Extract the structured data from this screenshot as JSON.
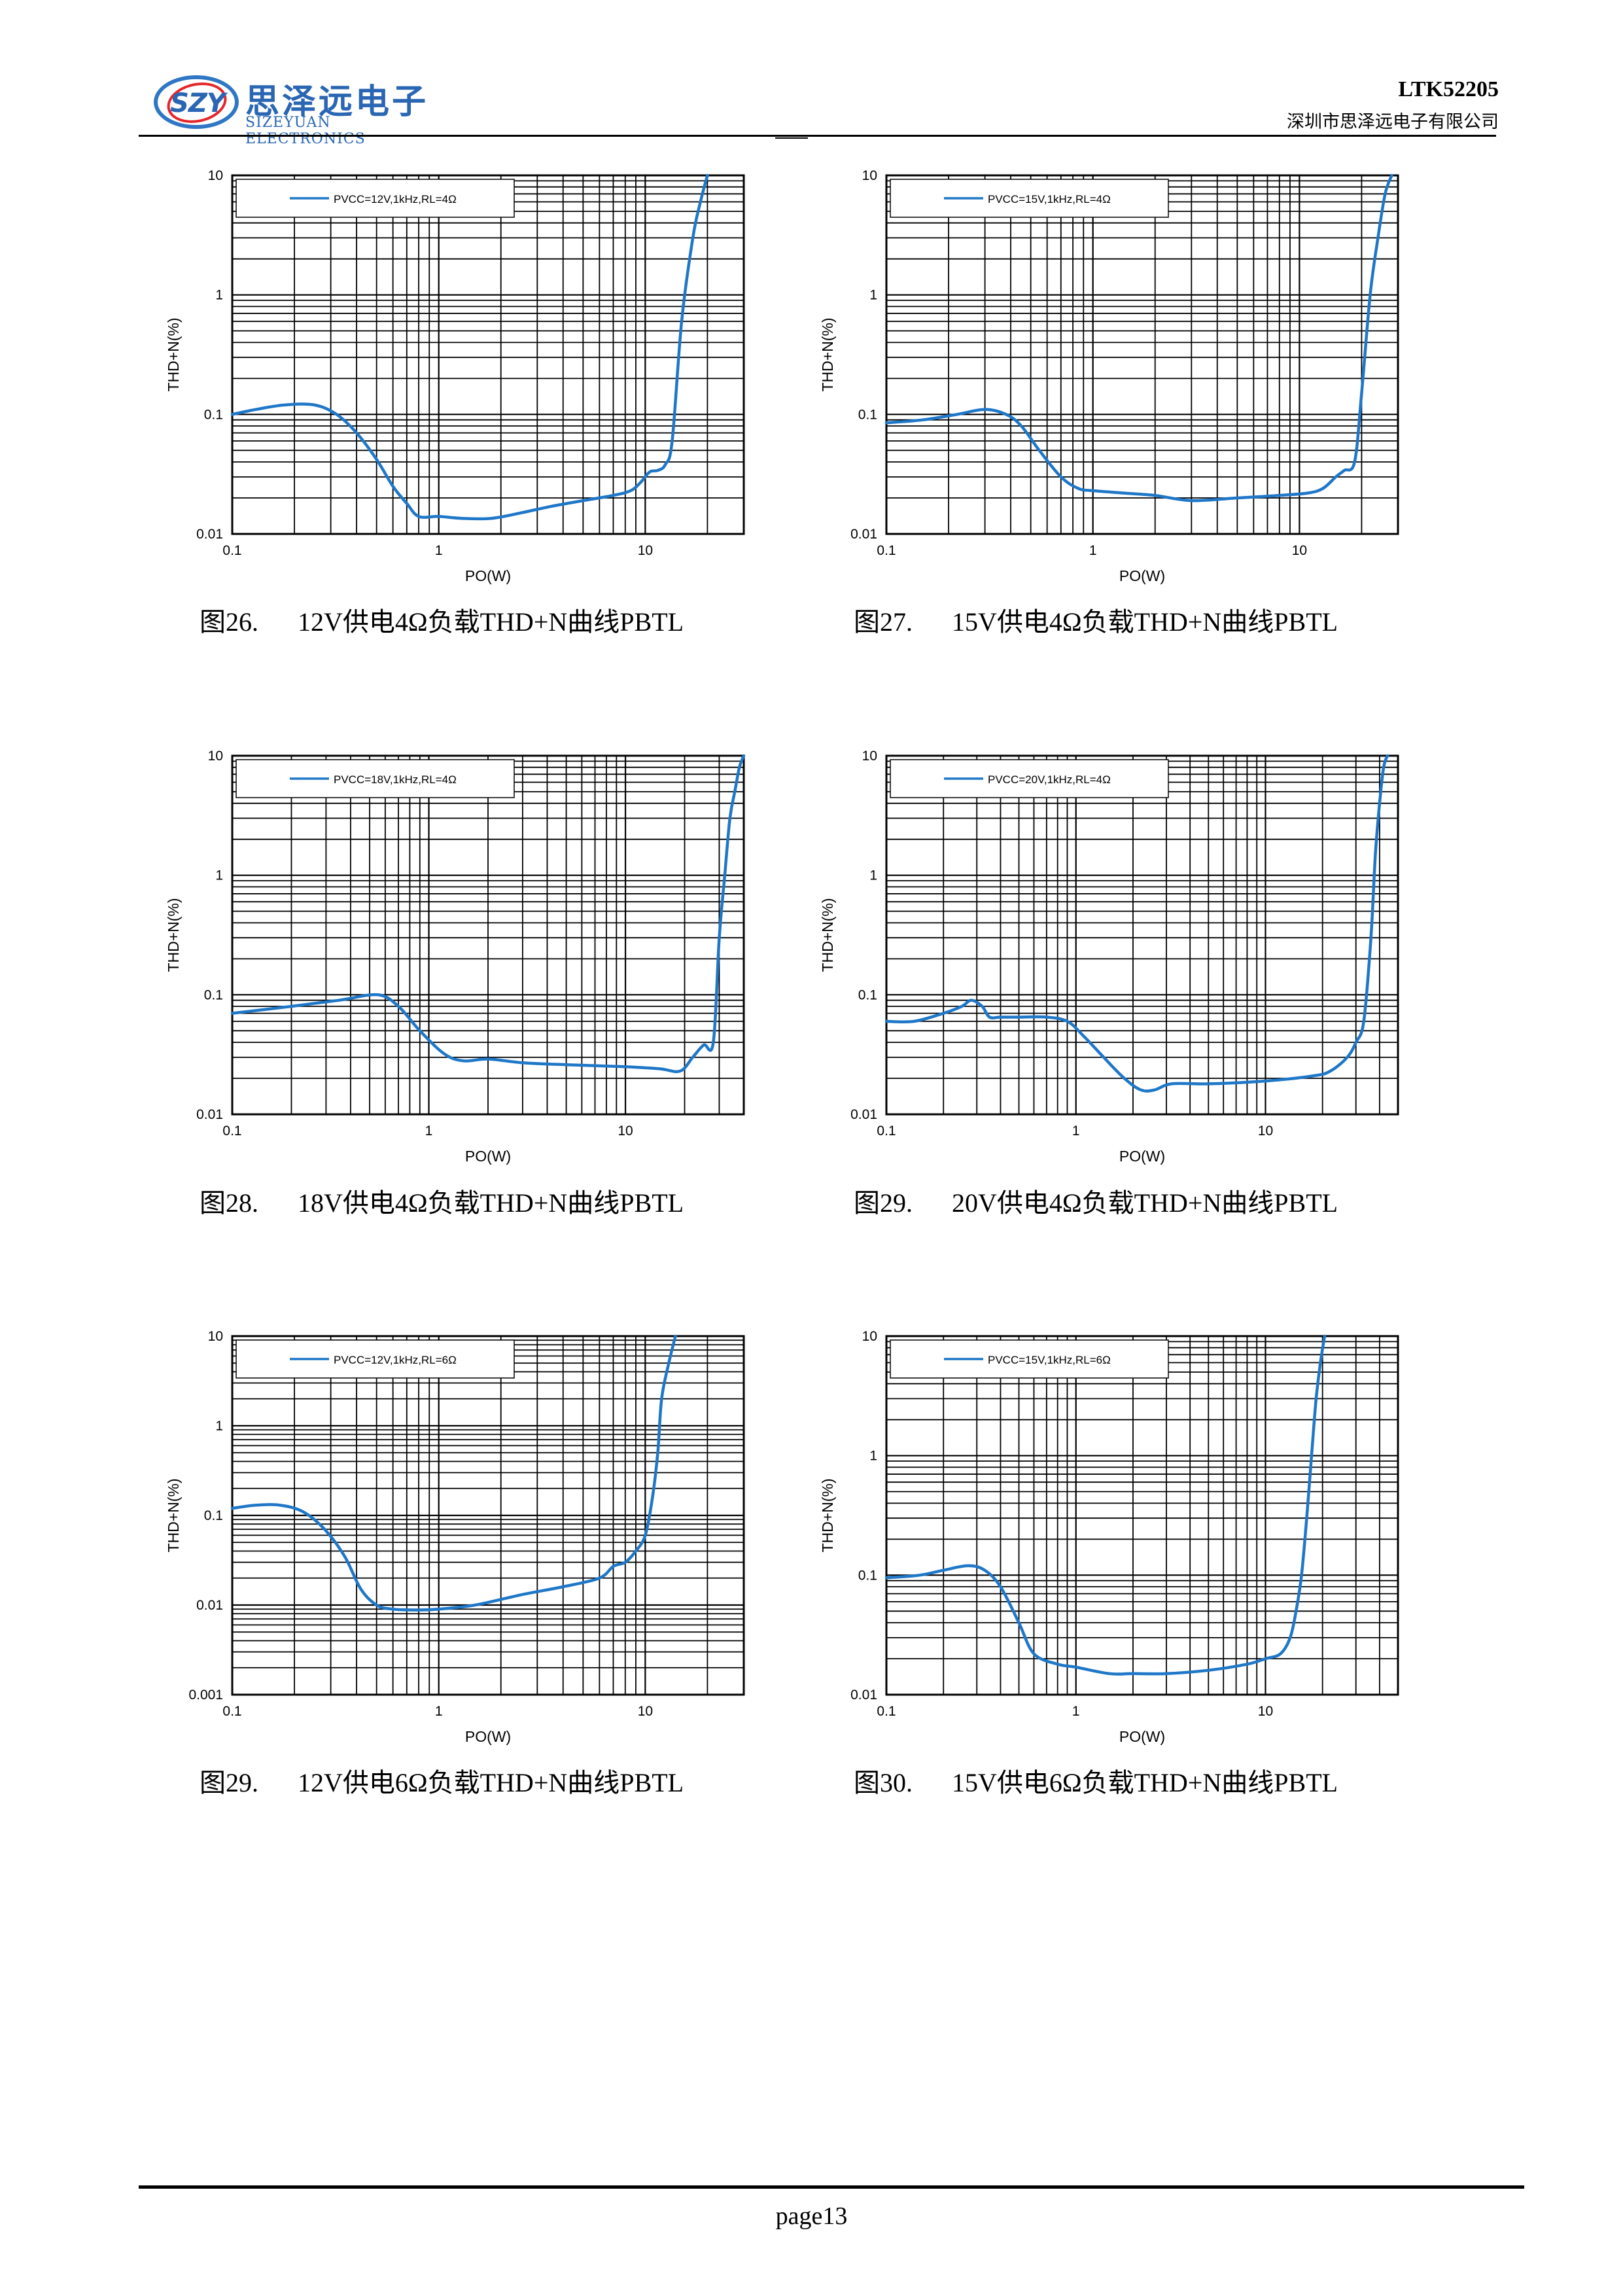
{
  "header": {
    "logo_mark": "SZY",
    "logo_cn": "思泽远电子",
    "logo_en": "SIZEYUAN ELECTRONICS",
    "doc_code": "LTK52205",
    "company": "深圳市思泽远电子有限公司"
  },
  "footer": {
    "page": "page13"
  },
  "charts": [
    {
      "caption_num": "图26.",
      "caption_text": "12V供电4Ω负载THD+N曲线PBTL"
    },
    {
      "caption_num": "图27.",
      "caption_text": "15V供电4Ω负载THD+N曲线PBTL"
    },
    {
      "caption_num": "图28.",
      "caption_text": "18V供电4Ω负载THD+N曲线PBTL"
    },
    {
      "caption_num": "图29.",
      "caption_text": "20V供电4Ω负载THD+N曲线PBTL"
    },
    {
      "caption_num": "图29.",
      "caption_text": "12V供电6Ω负载THD+N曲线PBTL"
    },
    {
      "caption_num": "图30.",
      "caption_text": "15V供电6Ω负载THD+N曲线PBTL"
    }
  ],
  "chart_data": [
    {
      "type": "line",
      "xscale": "log",
      "yscale": "log",
      "xlabel": "PO(W)",
      "ylabel": "THD+N(%)",
      "xlim": [
        0.1,
        30
      ],
      "ylim": [
        0.01,
        10
      ],
      "xticks": [
        "0.1",
        "1",
        "10"
      ],
      "yticks": [
        "0.01",
        "0.1",
        "1",
        "10"
      ],
      "grid": true,
      "legend": "top-left",
      "color": "#1f77c8",
      "series": [
        {
          "name": "PVCC=12V,1kHz,RL=4Ω",
          "x": [
            0.1,
            0.13,
            0.18,
            0.25,
            0.32,
            0.4,
            0.5,
            0.6,
            0.7,
            0.8,
            1.0,
            1.3,
            1.8,
            2.5,
            3.5,
            5,
            7,
            8.5,
            9.5,
            10.5,
            11.5,
            12.5,
            13.5,
            15,
            17,
            18.5,
            20
          ],
          "y": [
            0.1,
            0.11,
            0.12,
            0.12,
            0.1,
            0.07,
            0.042,
            0.025,
            0.018,
            0.014,
            0.014,
            0.0135,
            0.0135,
            0.015,
            0.017,
            0.019,
            0.021,
            0.023,
            0.027,
            0.033,
            0.034,
            0.038,
            0.06,
            0.6,
            3.0,
            6.0,
            10
          ]
        }
      ]
    },
    {
      "type": "line",
      "xscale": "log",
      "yscale": "log",
      "xlabel": "PO(W)",
      "ylabel": "THD+N(%)",
      "xlim": [
        0.1,
        30
      ],
      "ylim": [
        0.01,
        10
      ],
      "xticks": [
        "0.1",
        "1",
        "10"
      ],
      "yticks": [
        "0.01",
        "0.1",
        "1",
        "10"
      ],
      "grid": true,
      "legend": "top-left",
      "color": "#1f77c8",
      "series": [
        {
          "name": "PVCC=15V,1kHz,RL=4Ω",
          "x": [
            0.1,
            0.15,
            0.22,
            0.3,
            0.38,
            0.45,
            0.55,
            0.7,
            0.85,
            1.0,
            1.4,
            2.0,
            3.0,
            5,
            8,
            11,
            13,
            15,
            16.5,
            18.5,
            20,
            22,
            24,
            26,
            28
          ],
          "y": [
            0.085,
            0.09,
            0.1,
            0.11,
            0.1,
            0.08,
            0.05,
            0.03,
            0.024,
            0.023,
            0.022,
            0.021,
            0.019,
            0.02,
            0.021,
            0.022,
            0.024,
            0.03,
            0.034,
            0.04,
            0.15,
            1.0,
            3.0,
            7.0,
            10
          ]
        }
      ]
    },
    {
      "type": "line",
      "xscale": "log",
      "yscale": "log",
      "xlabel": "PO(W)",
      "ylabel": "THD+N(%)",
      "xlim": [
        0.1,
        40
      ],
      "ylim": [
        0.01,
        10
      ],
      "xticks": [
        "0.1",
        "1",
        "10"
      ],
      "yticks": [
        "0.01",
        "0.1",
        "1",
        "10"
      ],
      "grid": true,
      "legend": "top-left",
      "color": "#1f77c8",
      "series": [
        {
          "name": "PVCC=18V,1kHz,RL=4Ω",
          "x": [
            0.1,
            0.2,
            0.35,
            0.55,
            0.7,
            0.9,
            1.2,
            1.5,
            2.0,
            3.0,
            5,
            10,
            15,
            19,
            22,
            25,
            28,
            30,
            32,
            34,
            36,
            38,
            40
          ],
          "y": [
            0.07,
            0.08,
            0.09,
            0.1,
            0.08,
            0.05,
            0.032,
            0.028,
            0.029,
            0.027,
            0.026,
            0.025,
            0.024,
            0.023,
            0.03,
            0.038,
            0.04,
            0.3,
            1.0,
            3.0,
            5.0,
            8.0,
            10
          ]
        }
      ]
    },
    {
      "type": "line",
      "xscale": "log",
      "yscale": "log",
      "xlabel": "PO(W)",
      "ylabel": "THD+N(%)",
      "xlim": [
        0.1,
        50
      ],
      "ylim": [
        0.01,
        10
      ],
      "xticks": [
        "0.1",
        "1",
        "10"
      ],
      "yticks": [
        "0.01",
        "0.1",
        "1",
        "10"
      ],
      "grid": true,
      "legend": "top-left",
      "color": "#1f77c8",
      "series": [
        {
          "name": "PVCC=20V,1kHz,RL=4Ω",
          "x": [
            0.1,
            0.14,
            0.2,
            0.25,
            0.28,
            0.32,
            0.35,
            0.4,
            0.5,
            0.7,
            0.9,
            1.1,
            1.4,
            1.8,
            2.2,
            2.6,
            3.2,
            5,
            10,
            18,
            22,
            27,
            30,
            33,
            36,
            38,
            40,
            42,
            44
          ],
          "y": [
            0.06,
            0.06,
            0.07,
            0.08,
            0.09,
            0.08,
            0.065,
            0.065,
            0.065,
            0.065,
            0.06,
            0.045,
            0.03,
            0.02,
            0.016,
            0.016,
            0.018,
            0.018,
            0.019,
            0.021,
            0.023,
            0.03,
            0.04,
            0.06,
            0.3,
            1.5,
            4.0,
            8.0,
            10
          ]
        }
      ]
    },
    {
      "type": "line",
      "xscale": "log",
      "yscale": "log",
      "xlabel": "PO(W)",
      "ylabel": "THD+N(%)",
      "xlim": [
        0.1,
        30
      ],
      "ylim": [
        0.001,
        10
      ],
      "xticks": [
        "0.1",
        "1",
        "10"
      ],
      "yticks": [
        "0.001",
        "0.01",
        "0.1",
        "1",
        "10"
      ],
      "grid": true,
      "legend": "top-left",
      "color": "#1f77c8",
      "series": [
        {
          "name": "PVCC=12V,1kHz,RL=6Ω",
          "x": [
            0.1,
            0.13,
            0.17,
            0.22,
            0.28,
            0.35,
            0.42,
            0.5,
            0.6,
            0.8,
            1.0,
            1.5,
            2.5,
            4,
            6,
            7,
            8,
            9,
            10,
            10.8,
            11.5,
            12,
            13,
            14
          ],
          "y": [
            0.12,
            0.13,
            0.13,
            0.11,
            0.07,
            0.035,
            0.015,
            0.01,
            0.009,
            0.0088,
            0.009,
            0.01,
            0.013,
            0.016,
            0.02,
            0.027,
            0.03,
            0.04,
            0.06,
            0.15,
            0.5,
            2.0,
            5.0,
            10
          ]
        }
      ]
    },
    {
      "type": "line",
      "xscale": "log",
      "yscale": "log",
      "xlabel": "PO(W)",
      "ylabel": "THD+N(%)",
      "xlim": [
        0.1,
        50
      ],
      "ylim": [
        0.01,
        10
      ],
      "xticks": [
        "0.1",
        "1",
        "10"
      ],
      "yticks": [
        "0.01",
        "0.1",
        "1",
        "10"
      ],
      "grid": true,
      "legend": "top-left",
      "color": "#1f77c8",
      "series": [
        {
          "name": "PVCC=15V,1kHz,RL=6Ω",
          "x": [
            0.1,
            0.15,
            0.2,
            0.27,
            0.33,
            0.4,
            0.5,
            0.6,
            0.8,
            1.0,
            1.5,
            2.0,
            3.0,
            5,
            8,
            10,
            12,
            13.5,
            14.5,
            15.5,
            16.5,
            17.5,
            18.5,
            19.5,
            20.5
          ],
          "y": [
            0.095,
            0.1,
            0.11,
            0.12,
            0.11,
            0.08,
            0.04,
            0.022,
            0.018,
            0.017,
            0.015,
            0.015,
            0.015,
            0.016,
            0.018,
            0.02,
            0.022,
            0.03,
            0.05,
            0.1,
            0.3,
            1.0,
            3.0,
            6.0,
            10
          ]
        }
      ]
    }
  ]
}
